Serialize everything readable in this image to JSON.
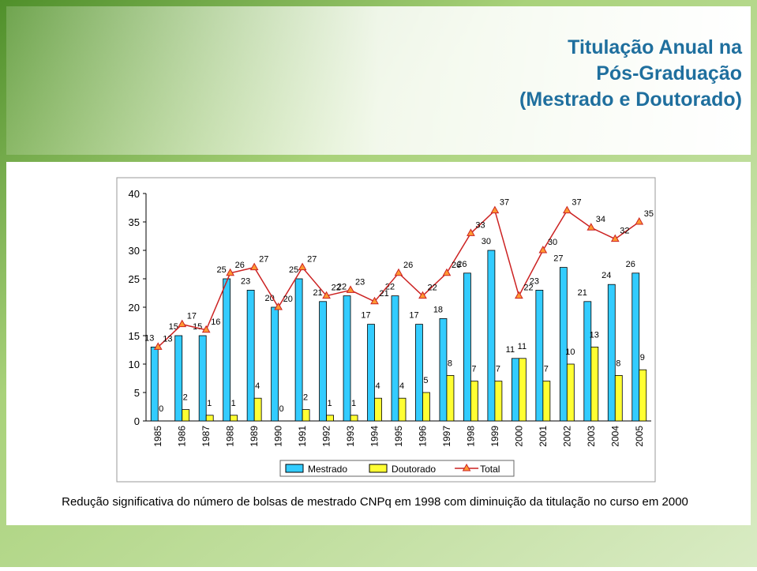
{
  "chart_data": {
    "type": "bar_line",
    "title": [
      "Titulação Anual na",
      "Pós-Graduação",
      "(Mestrado e Doutorado)"
    ],
    "categories": [
      "1985",
      "1986",
      "1987",
      "1988",
      "1989",
      "1990",
      "1991",
      "1992",
      "1993",
      "1994",
      "1995",
      "1996",
      "1997",
      "1998",
      "1999",
      "2000",
      "2001",
      "2002",
      "2003",
      "2004",
      "2005"
    ],
    "series": [
      {
        "name": "Mestrado",
        "type": "bar",
        "color": "#33ccff",
        "values": [
          13,
          15,
          15,
          25,
          23,
          20,
          25,
          21,
          22,
          17,
          22,
          17,
          18,
          26,
          30,
          11,
          23,
          27,
          21,
          24,
          26
        ]
      },
      {
        "name": "Doutorado",
        "type": "bar",
        "color": "#ffff33",
        "values": [
          0,
          2,
          1,
          1,
          4,
          0,
          2,
          1,
          1,
          4,
          4,
          5,
          8,
          7,
          7,
          11,
          7,
          10,
          13,
          8,
          9
        ]
      },
      {
        "name": "Total",
        "type": "line",
        "color": "#cc2222",
        "marker_color": "#ff9933",
        "values": [
          13,
          17,
          16,
          26,
          27,
          20,
          27,
          22,
          23,
          21,
          26,
          22,
          26,
          33,
          37,
          22,
          30,
          37,
          34,
          32,
          35
        ]
      }
    ],
    "ylim": [
      0,
      40
    ],
    "yticks": [
      0,
      5,
      10,
      15,
      20,
      25,
      30,
      35,
      40
    ],
    "grid": false,
    "legend": "bottom",
    "caption": "Redução significativa do número de bolsas de mestrado CNPq em 1998 com diminuição da titulação no curso  em 2000"
  }
}
